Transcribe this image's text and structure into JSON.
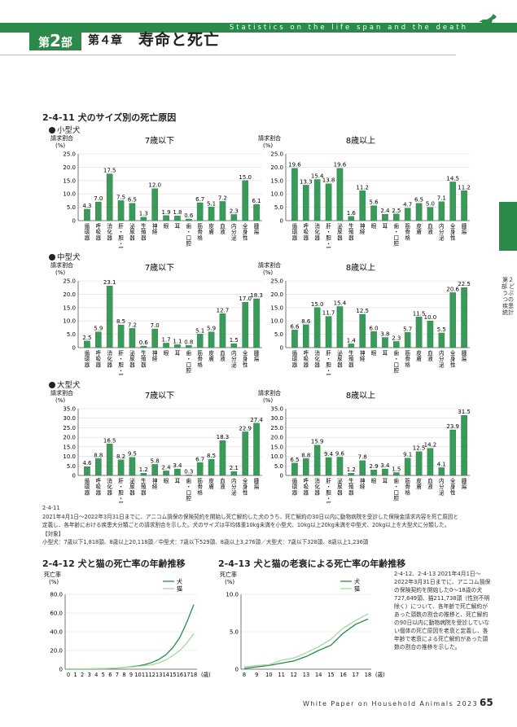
{
  "header": {
    "title_en": "Statistics on the life span and the death",
    "part_prefix": "第",
    "part_num": "2",
    "part_suffix": "部",
    "chapter": "第４章",
    "chapter_title": "寿命と死亡"
  },
  "figure_2_4_11": {
    "title_num": "2-4-11",
    "title": "犬のサイズ別の死亡原因",
    "ylabel_line1": "請求割合",
    "ylabel_line2": "(%)",
    "panel_titles": {
      "young": "7歳以下",
      "old": "8歳以上"
    }
  },
  "chart_data": [
    {
      "type": "bar",
      "id": "small_young",
      "group": "小型犬",
      "title": "7歳以下",
      "categories": [
        "循環器",
        "呼吸器",
        "消化器",
        "肝・胆・膵",
        "泌尿器",
        "生殖器",
        "神経",
        "眼",
        "耳",
        "歯・口腔",
        "筋骨格",
        "皮膚",
        "血液",
        "内分泌",
        "全身性",
        "腫瘍"
      ],
      "values": [
        4.3,
        7.0,
        17.5,
        7.5,
        6.5,
        1.3,
        12.0,
        1.9,
        1.8,
        0.6,
        6.7,
        5.1,
        7.2,
        2.3,
        15.0,
        6.1
      ],
      "ylim": [
        0,
        25
      ],
      "yticks": [
        0,
        5.0,
        10.0,
        15.0,
        20.0,
        25.0
      ],
      "ylabel": "請求割合 (%)"
    },
    {
      "type": "bar",
      "id": "small_old",
      "group": "小型犬",
      "title": "8歳以上",
      "categories": [
        "循環器",
        "呼吸器",
        "消化器",
        "肝・胆・膵",
        "泌尿器",
        "生殖器",
        "神経",
        "眼",
        "耳",
        "歯・口腔",
        "筋骨格",
        "皮膚",
        "血液",
        "内分泌",
        "全身性",
        "腫瘍"
      ],
      "values": [
        19.6,
        13.3,
        15.4,
        13.8,
        19.6,
        1.6,
        11.2,
        5.6,
        2.4,
        2.5,
        4.7,
        6.5,
        5.0,
        7.1,
        14.5,
        11.2
      ],
      "ylim": [
        0,
        25
      ],
      "yticks": [
        0,
        5.0,
        10.0,
        15.0,
        20.0,
        25.0
      ],
      "ylabel": "請求割合 (%)"
    },
    {
      "type": "bar",
      "id": "medium_young",
      "group": "中型犬",
      "title": "7歳以下",
      "categories": [
        "循環器",
        "呼吸器",
        "消化器",
        "肝・胆・膵",
        "泌尿器",
        "生殖器",
        "神経",
        "眼",
        "耳",
        "歯・口腔",
        "筋骨格",
        "皮膚",
        "血液",
        "内分泌",
        "全身性",
        "腫瘍"
      ],
      "values": [
        2.5,
        5.9,
        23.1,
        8.5,
        7.2,
        0.6,
        7.0,
        1.7,
        1.1,
        0.8,
        5.1,
        5.9,
        12.7,
        1.5,
        17.0,
        18.3
      ],
      "ylim": [
        0,
        25
      ],
      "yticks": [
        0,
        5.0,
        10.0,
        15.0,
        20.0,
        25.0
      ],
      "ylabel": "請求割合 (%)"
    },
    {
      "type": "bar",
      "id": "medium_old",
      "group": "中型犬",
      "title": "8歳以上",
      "categories": [
        "循環器",
        "呼吸器",
        "消化器",
        "肝・胆・膵",
        "泌尿器",
        "生殖器",
        "神経",
        "眼",
        "耳",
        "歯・口腔",
        "筋骨格",
        "皮膚",
        "血液",
        "内分泌",
        "全身性",
        "腫瘍"
      ],
      "values": [
        6.6,
        8.6,
        15.0,
        11.7,
        15.4,
        1.4,
        12.5,
        6.0,
        3.8,
        2.3,
        5.7,
        11.5,
        10.0,
        5.5,
        20.6,
        22.5
      ],
      "ylim": [
        0,
        25
      ],
      "yticks": [
        0,
        5.0,
        10.0,
        15.0,
        20.0,
        25.0
      ],
      "ylabel": "請求割合 (%)"
    },
    {
      "type": "bar",
      "id": "large_young",
      "group": "大型犬",
      "title": "7歳以下",
      "categories": [
        "循環器",
        "呼吸器",
        "消化器",
        "肝・胆・膵",
        "泌尿器",
        "生殖器",
        "神経",
        "眼",
        "耳",
        "歯・口腔",
        "筋骨格",
        "皮膚",
        "血液",
        "内分泌",
        "全身性",
        "腫瘍"
      ],
      "values": [
        4.6,
        8.8,
        16.5,
        8.2,
        9.5,
        1.2,
        5.8,
        2.4,
        3.4,
        0.3,
        6.7,
        8.5,
        18.3,
        2.1,
        22.9,
        27.4
      ],
      "ylim": [
        0,
        35
      ],
      "yticks": [
        0,
        5.0,
        10.0,
        15.0,
        20.0,
        25.0,
        30.0,
        35.0
      ],
      "ylabel": "請求割合 (%)"
    },
    {
      "type": "bar",
      "id": "large_old",
      "group": "大型犬",
      "title": "8歳以上",
      "categories": [
        "循環器",
        "呼吸器",
        "消化器",
        "肝・胆・膵",
        "泌尿器",
        "生殖器",
        "神経",
        "眼",
        "耳",
        "歯・口腔",
        "筋骨格",
        "皮膚",
        "血液",
        "内分泌",
        "全身性",
        "腫瘍"
      ],
      "values": [
        6.5,
        8.8,
        15.9,
        9.4,
        9.6,
        1.2,
        7.8,
        2.9,
        3.4,
        1.5,
        9.1,
        12.5,
        14.2,
        4.1,
        23.9,
        31.5
      ],
      "ylim": [
        0,
        35
      ],
      "yticks": [
        0,
        5.0,
        10.0,
        15.0,
        20.0,
        25.0,
        30.0,
        35.0
      ],
      "ylabel": "請求割合 (%)"
    },
    {
      "type": "line",
      "id": "mortality_by_age",
      "title": "犬と猫の死亡率の年齢推移",
      "ylabel": "死亡率 (%)",
      "x": [
        0,
        1,
        2,
        3,
        4,
        5,
        6,
        7,
        8,
        9,
        10,
        11,
        12,
        13,
        14,
        15,
        16,
        17,
        18
      ],
      "xlabel_suffix": "(歳)",
      "ylim": [
        0,
        80
      ],
      "yticks": [
        0,
        20.0,
        40.0,
        60.0,
        80.0
      ],
      "series": [
        {
          "name": "犬",
          "color": "#2b8a4a",
          "values": [
            0.2,
            0.2,
            0.3,
            0.3,
            0.4,
            0.6,
            0.8,
            1.2,
            1.8,
            2.6,
            3.6,
            5.0,
            7.2,
            10.5,
            15.5,
            23,
            34,
            50,
            69
          ]
        },
        {
          "name": "猫",
          "color": "#a8d8a0",
          "values": [
            0.5,
            0.4,
            0.4,
            0.5,
            0.6,
            0.7,
            1.0,
            1.3,
            1.8,
            2.3,
            3.0,
            3.8,
            4.8,
            6.8,
            10.0,
            14.5,
            20,
            28,
            38
          ]
        }
      ]
    },
    {
      "type": "line",
      "id": "senility_death_rate",
      "title": "犬と猫の老衰による死亡率の年齢推移",
      "ylabel": "死亡率 (%)",
      "x": [
        8,
        9,
        10,
        11,
        12,
        13,
        14,
        15,
        16,
        17,
        18
      ],
      "xlabel_suffix": "(歳)",
      "ylim": [
        0,
        10
      ],
      "yticks": [
        0,
        5.0,
        10.0
      ],
      "series": [
        {
          "name": "犬",
          "color": "#2b8a4a",
          "values": [
            0.1,
            0.3,
            0.5,
            0.8,
            1.1,
            1.7,
            2.5,
            3.2,
            4.8,
            6.0,
            6.7
          ]
        },
        {
          "name": "猫",
          "color": "#a8d8a0",
          "values": [
            0.3,
            0.5,
            0.6,
            1.2,
            1.5,
            2.2,
            3.0,
            4.0,
            5.5,
            6.5,
            7.4
          ]
        }
      ]
    }
  ],
  "groups": {
    "small": "小型犬",
    "medium": "中型犬",
    "large": "大型犬"
  },
  "notes_2_4_11": {
    "id": "2-4-11",
    "line1": "2021年4月1日～2022年3月31日までに、アニコム損保の保険契約を開始し死亡解約した犬のうち、死亡解約の30日以内に動物病院を受診した保険金請求内容を死亡原因と",
    "line2": "定義し、各年齢における疾患大分類ごとの請求割合を示した。犬のサイズは平均体重10kg未満を小型犬、10kg以上20kg未満を中型犬、20kg以上を大型犬に分類した。",
    "line3": "【対象】",
    "line4": "小型犬：7歳以下1,818頭、8歳以上20,118頭／中型犬：7歳以下529頭、8歳以上3,276頭／大型犬：7歳以下328頭、8歳以上1,236頭"
  },
  "figure_2_4_12": {
    "num": "2-4-12",
    "title": "犬と猫の死亡率の年齢推移",
    "ylabel1": "死亡率",
    "ylabel2": "(%)",
    "legend_dog": "犬",
    "legend_cat": "猫",
    "xunit": "(歳)"
  },
  "figure_2_4_13": {
    "num": "2-4-13",
    "title": "犬と猫の老衰による死亡率の年齢推移",
    "ylabel1": "死亡率",
    "ylabel2": "(%)",
    "legend_dog": "犬",
    "legend_cat": "猫",
    "xunit": "(歳)"
  },
  "note_right": "2-4-12、2-4-13 2021年4月1日～2022年3月31日までに、アニコム損保の保険契約を開始した0～18歳の犬727,649頭、猫211,738頭（性別不明除く）について、各年齢で死亡解約があった頭数の割合の推移と、死亡解約の90日以内に動物病院を受診していない個体の死亡原因を老衰と定義し、各年齢で老衰による死亡解約があった頭数の割合の推移を示した。",
  "side_tab": "第２部 どうぶつの疾患統計",
  "footer": {
    "text": "White Paper on Household Animals 2023",
    "page": "65"
  }
}
